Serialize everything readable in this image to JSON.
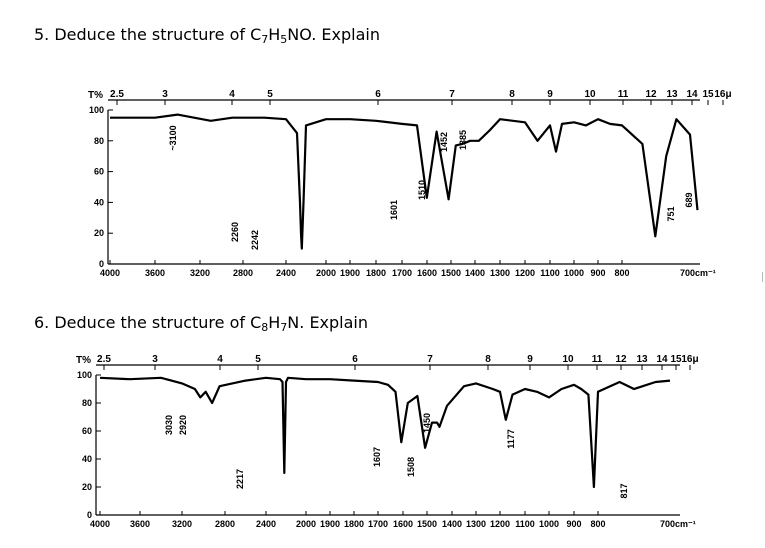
{
  "questions": [
    {
      "number": "5.",
      "text_before": "Deduce the structure of C",
      "formula_parts": [
        {
          "t": "C"
        },
        {
          "s": "7"
        },
        {
          "t": "H"
        },
        {
          "s": "5"
        },
        {
          "t": "NO"
        }
      ],
      "text_after": ". Explain"
    },
    {
      "number": "6.",
      "text_before": "Deduce the structure of C",
      "formula_parts": [
        {
          "t": "C"
        },
        {
          "s": "8"
        },
        {
          "t": "H"
        },
        {
          "s": "7"
        },
        {
          "t": "N"
        }
      ],
      "text_after": ". Explain"
    }
  ],
  "q5_text": "5. Deduce the structure of C",
  "q6_text": "6. Deduce the structure of C",
  "chart_data": [
    {
      "type": "line",
      "title": "",
      "xlabel": "",
      "ylabel": "T%",
      "x_unit_label": "700cm⁻¹",
      "x_ticks": [
        "4000",
        "3600",
        "3200",
        "2800",
        "2400",
        "2000",
        "1900",
        "1800",
        "1700",
        "1600",
        "1500",
        "1400",
        "1300",
        "1200",
        "1100",
        "1000",
        "900",
        "800"
      ],
      "y_ticks": [
        "100",
        "80",
        "60",
        "40",
        "20",
        "0"
      ],
      "micron_ticks": [
        "2.5",
        "3",
        "4",
        "5",
        "6",
        "7",
        "8",
        "9",
        "10",
        "11",
        "12",
        "13",
        "14",
        "15",
        "16μ"
      ],
      "peak_labels": [
        "~3100",
        "2260",
        "2242",
        "1601",
        "1510",
        "1452",
        "1385",
        "751",
        "689"
      ],
      "series": [
        {
          "x": [
            4000,
            3600,
            3400,
            3100,
            2900,
            2600,
            2400,
            2290,
            2260,
            2250,
            2242,
            2225,
            2200,
            2000,
            1900,
            1800,
            1700,
            1640,
            1601,
            1560,
            1510,
            1480,
            1452,
            1420,
            1385,
            1340,
            1300,
            1200,
            1150,
            1100,
            1075,
            1050,
            1000,
            950,
            900,
            850,
            800,
            770,
            751,
            735,
            720,
            700,
            689
          ],
          "y": [
            95,
            95,
            97,
            93,
            95,
            95,
            94,
            85,
            40,
            20,
            10,
            40,
            90,
            94,
            94,
            93,
            91,
            90,
            43,
            86,
            42,
            77,
            78,
            80,
            80,
            87,
            94,
            92,
            80,
            90,
            73,
            91,
            92,
            90,
            94,
            91,
            90,
            78,
            18,
            70,
            94,
            84,
            35
          ]
        }
      ]
    },
    {
      "type": "line",
      "title": "",
      "xlabel": "",
      "ylabel": "T%",
      "x_unit_label": "700cm⁻¹",
      "x_ticks": [
        "4000",
        "3600",
        "3200",
        "2800",
        "2400",
        "2000",
        "1900",
        "1800",
        "1700",
        "1600",
        "1500",
        "1400",
        "1300",
        "1200",
        "1100",
        "1000",
        "900",
        "800"
      ],
      "y_ticks": [
        "100",
        "80",
        "60",
        "40",
        "20",
        "0"
      ],
      "micron_ticks": [
        "2.5",
        "3",
        "4",
        "5",
        "6",
        "7",
        "8",
        "9",
        "10",
        "11",
        "12",
        "13",
        "14",
        "15",
        "16μ"
      ],
      "peak_labels": [
        "3030",
        "2920",
        "2217",
        "1607",
        "1508",
        "1450",
        "1177",
        "817"
      ],
      "series": [
        {
          "x": [
            4000,
            3700,
            3400,
            3200,
            3080,
            3030,
            2980,
            2920,
            2850,
            2600,
            2400,
            2260,
            2235,
            2217,
            2200,
            2180,
            2000,
            1900,
            1800,
            1700,
            1660,
            1630,
            1607,
            1580,
            1540,
            1508,
            1480,
            1460,
            1450,
            1420,
            1350,
            1300,
            1230,
            1200,
            1177,
            1150,
            1100,
            1050,
            1000,
            950,
            900,
            870,
            840,
            817,
            800,
            770,
            750,
            720,
            700
          ],
          "y": [
            98,
            97,
            98,
            94,
            90,
            84,
            88,
            80,
            92,
            96,
            98,
            97,
            95,
            30,
            95,
            98,
            97,
            97,
            96,
            95,
            93,
            88,
            52,
            80,
            85,
            48,
            66,
            66,
            63,
            78,
            92,
            94,
            90,
            88,
            68,
            86,
            90,
            88,
            84,
            90,
            93,
            90,
            86,
            20,
            88,
            95,
            90,
            95,
            96
          ]
        }
      ]
    }
  ]
}
